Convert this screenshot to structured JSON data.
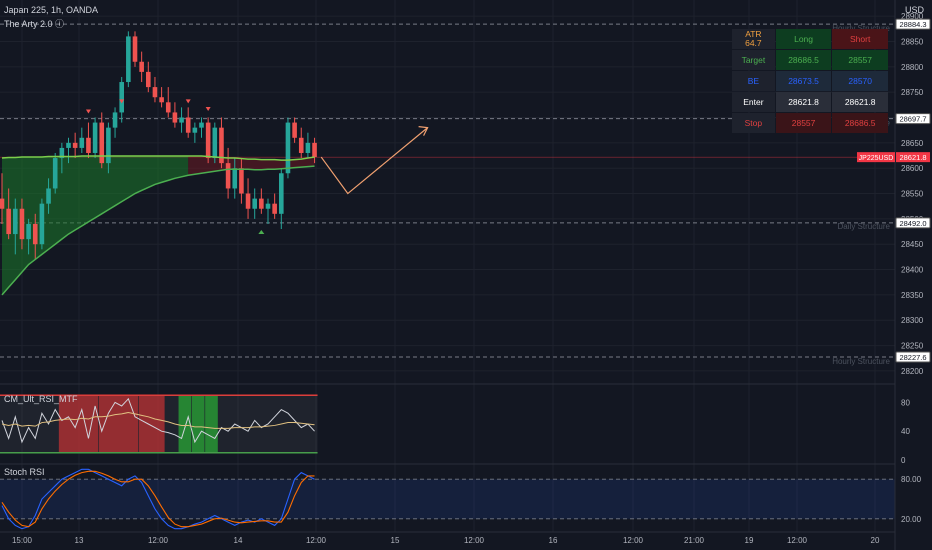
{
  "header": {
    "symbol": "Japan 225, 1h, OANDA",
    "indicator": "The Arty 2.0 ⓘ",
    "currency": "USD"
  },
  "panels": {
    "rsi_label": "CM_Ult_RSI_MTF",
    "stoch_label": "Stoch RSI"
  },
  "price_labels": {
    "r1": "28884.3",
    "r2": "28697.7",
    "current_symbol": "JP225USD",
    "current": "28621.8",
    "s1": "28492.0",
    "s2": "28227.6"
  },
  "structure_labels": [
    "Hourly Structure",
    "Hourly Structure",
    "Daily Structure",
    "Hourly Structure"
  ],
  "trade_table": {
    "atr_label": "ATR",
    "atr_value": "64.7",
    "col_long": "Long",
    "col_short": "Short",
    "rows": [
      {
        "label": "Target",
        "long": "28686.5",
        "short": "28557"
      },
      {
        "label": "BE",
        "long": "28673.5",
        "short": "28570"
      },
      {
        "label": "Enter",
        "long": "28621.8",
        "short": "28621.8"
      },
      {
        "label": "Stop",
        "long": "28557",
        "short": "28686.5"
      }
    ]
  },
  "colors": {
    "background": "#131722",
    "up": "#26a69a",
    "down": "#ef5350",
    "ema": "#4caf50",
    "projection": "#f0a070",
    "current_price": "#f23645"
  },
  "chart_data": {
    "type": "candlestick",
    "symbol": "Japan 225",
    "timeframe": "1h",
    "price_axis": {
      "ticks": [
        28200,
        28250,
        28300,
        28350,
        28400,
        28450,
        28500,
        28550,
        28600,
        28650,
        28700,
        28750,
        28800,
        28850,
        28900
      ],
      "range": [
        28190,
        28920
      ]
    },
    "time_axis": [
      "15:00",
      "13",
      "12:00",
      "14",
      "12:00",
      "15",
      "12:00",
      "16",
      "12:00",
      "21:00",
      "19",
      "12:00",
      "20"
    ],
    "horizontal_levels": [
      28884.3,
      28697.7,
      28492.0,
      28227.6
    ],
    "current_price": 28621.8,
    "candles": [
      {
        "o": 28540,
        "h": 28590,
        "l": 28490,
        "c": 28520
      },
      {
        "o": 28520,
        "h": 28560,
        "l": 28460,
        "c": 28470
      },
      {
        "o": 28470,
        "h": 28540,
        "l": 28430,
        "c": 28520
      },
      {
        "o": 28520,
        "h": 28540,
        "l": 28440,
        "c": 28460
      },
      {
        "o": 28460,
        "h": 28500,
        "l": 28430,
        "c": 28490
      },
      {
        "o": 28490,
        "h": 28510,
        "l": 28420,
        "c": 28450
      },
      {
        "o": 28450,
        "h": 28540,
        "l": 28440,
        "c": 28530
      },
      {
        "o": 28530,
        "h": 28580,
        "l": 28510,
        "c": 28560
      },
      {
        "o": 28560,
        "h": 28630,
        "l": 28550,
        "c": 28620
      },
      {
        "o": 28620,
        "h": 28650,
        "l": 28590,
        "c": 28640
      },
      {
        "o": 28640,
        "h": 28660,
        "l": 28610,
        "c": 28650
      },
      {
        "o": 28650,
        "h": 28670,
        "l": 28620,
        "c": 28640
      },
      {
        "o": 28640,
        "h": 28680,
        "l": 28630,
        "c": 28660
      },
      {
        "o": 28660,
        "h": 28690,
        "l": 28620,
        "c": 28630
      },
      {
        "o": 28630,
        "h": 28700,
        "l": 28620,
        "c": 28690
      },
      {
        "o": 28690,
        "h": 28710,
        "l": 28600,
        "c": 28610
      },
      {
        "o": 28610,
        "h": 28690,
        "l": 28590,
        "c": 28680
      },
      {
        "o": 28680,
        "h": 28720,
        "l": 28660,
        "c": 28710
      },
      {
        "o": 28710,
        "h": 28780,
        "l": 28690,
        "c": 28770
      },
      {
        "o": 28770,
        "h": 28870,
        "l": 28760,
        "c": 28860
      },
      {
        "o": 28860,
        "h": 28870,
        "l": 28800,
        "c": 28810
      },
      {
        "o": 28810,
        "h": 28830,
        "l": 28770,
        "c": 28790
      },
      {
        "o": 28790,
        "h": 28810,
        "l": 28750,
        "c": 28760
      },
      {
        "o": 28760,
        "h": 28780,
        "l": 28730,
        "c": 28740
      },
      {
        "o": 28740,
        "h": 28760,
        "l": 28720,
        "c": 28730
      },
      {
        "o": 28730,
        "h": 28760,
        "l": 28700,
        "c": 28710
      },
      {
        "o": 28710,
        "h": 28730,
        "l": 28680,
        "c": 28690
      },
      {
        "o": 28690,
        "h": 28720,
        "l": 28670,
        "c": 28700
      },
      {
        "o": 28700,
        "h": 28720,
        "l": 28660,
        "c": 28670
      },
      {
        "o": 28670,
        "h": 28690,
        "l": 28650,
        "c": 28680
      },
      {
        "o": 28680,
        "h": 28700,
        "l": 28660,
        "c": 28690
      },
      {
        "o": 28690,
        "h": 28700,
        "l": 28610,
        "c": 28620
      },
      {
        "o": 28620,
        "h": 28690,
        "l": 28610,
        "c": 28680
      },
      {
        "o": 28680,
        "h": 28700,
        "l": 28600,
        "c": 28610
      },
      {
        "o": 28610,
        "h": 28640,
        "l": 28540,
        "c": 28560
      },
      {
        "o": 28560,
        "h": 28620,
        "l": 28540,
        "c": 28600
      },
      {
        "o": 28600,
        "h": 28620,
        "l": 28530,
        "c": 28550
      },
      {
        "o": 28550,
        "h": 28580,
        "l": 28500,
        "c": 28520
      },
      {
        "o": 28520,
        "h": 28560,
        "l": 28500,
        "c": 28540
      },
      {
        "o": 28540,
        "h": 28560,
        "l": 28510,
        "c": 28520
      },
      {
        "o": 28520,
        "h": 28540,
        "l": 28490,
        "c": 28530
      },
      {
        "o": 28530,
        "h": 28550,
        "l": 28500,
        "c": 28510
      },
      {
        "o": 28510,
        "h": 28600,
        "l": 28480,
        "c": 28590
      },
      {
        "o": 28590,
        "h": 28700,
        "l": 28580,
        "c": 28690
      },
      {
        "o": 28690,
        "h": 28700,
        "l": 28650,
        "c": 28660
      },
      {
        "o": 28660,
        "h": 28680,
        "l": 28620,
        "c": 28630
      },
      {
        "o": 28630,
        "h": 28670,
        "l": 28620,
        "c": 28650
      },
      {
        "o": 28650,
        "h": 28660,
        "l": 28610,
        "c": 28622
      }
    ],
    "ema": [
      28350,
      28365,
      28380,
      28395,
      28410,
      28420,
      28430,
      28440,
      28450,
      28460,
      28470,
      28478,
      28486,
      28494,
      28502,
      28510,
      28518,
      28526,
      28534,
      28542,
      28550,
      28556,
      28562,
      28568,
      28572,
      28576,
      28580,
      28583,
      28586,
      28588,
      28590,
      28592,
      28594,
      28596,
      28598,
      28598,
      28598,
      28598,
      28597,
      28597,
      28598,
      28598,
      28599,
      28600,
      28601,
      28602,
      28603,
      28604
    ],
    "ema_upper": [
      28620,
      28621,
      28621,
      28622,
      28622,
      28622,
      28622,
      28623,
      28623,
      28623,
      28623,
      28623,
      28624,
      28624,
      28624,
      28624,
      28624,
      28624,
      28624,
      28624,
      28624,
      28624,
      28624,
      28624,
      28624,
      28624,
      28624,
      28624,
      28624,
      28624,
      28624,
      28623,
      28622,
      28621,
      28620,
      28620,
      28619,
      28618,
      28618,
      28617,
      28617,
      28617,
      28616,
      28616,
      28617,
      28618,
      28620,
      28622
    ],
    "projection": [
      [
        48,
        28622
      ],
      [
        52,
        28550
      ],
      [
        64,
        28680
      ]
    ],
    "rsi_bands": {
      "upper": 90,
      "lower": 10
    },
    "stoch_levels": [
      80,
      20
    ]
  }
}
